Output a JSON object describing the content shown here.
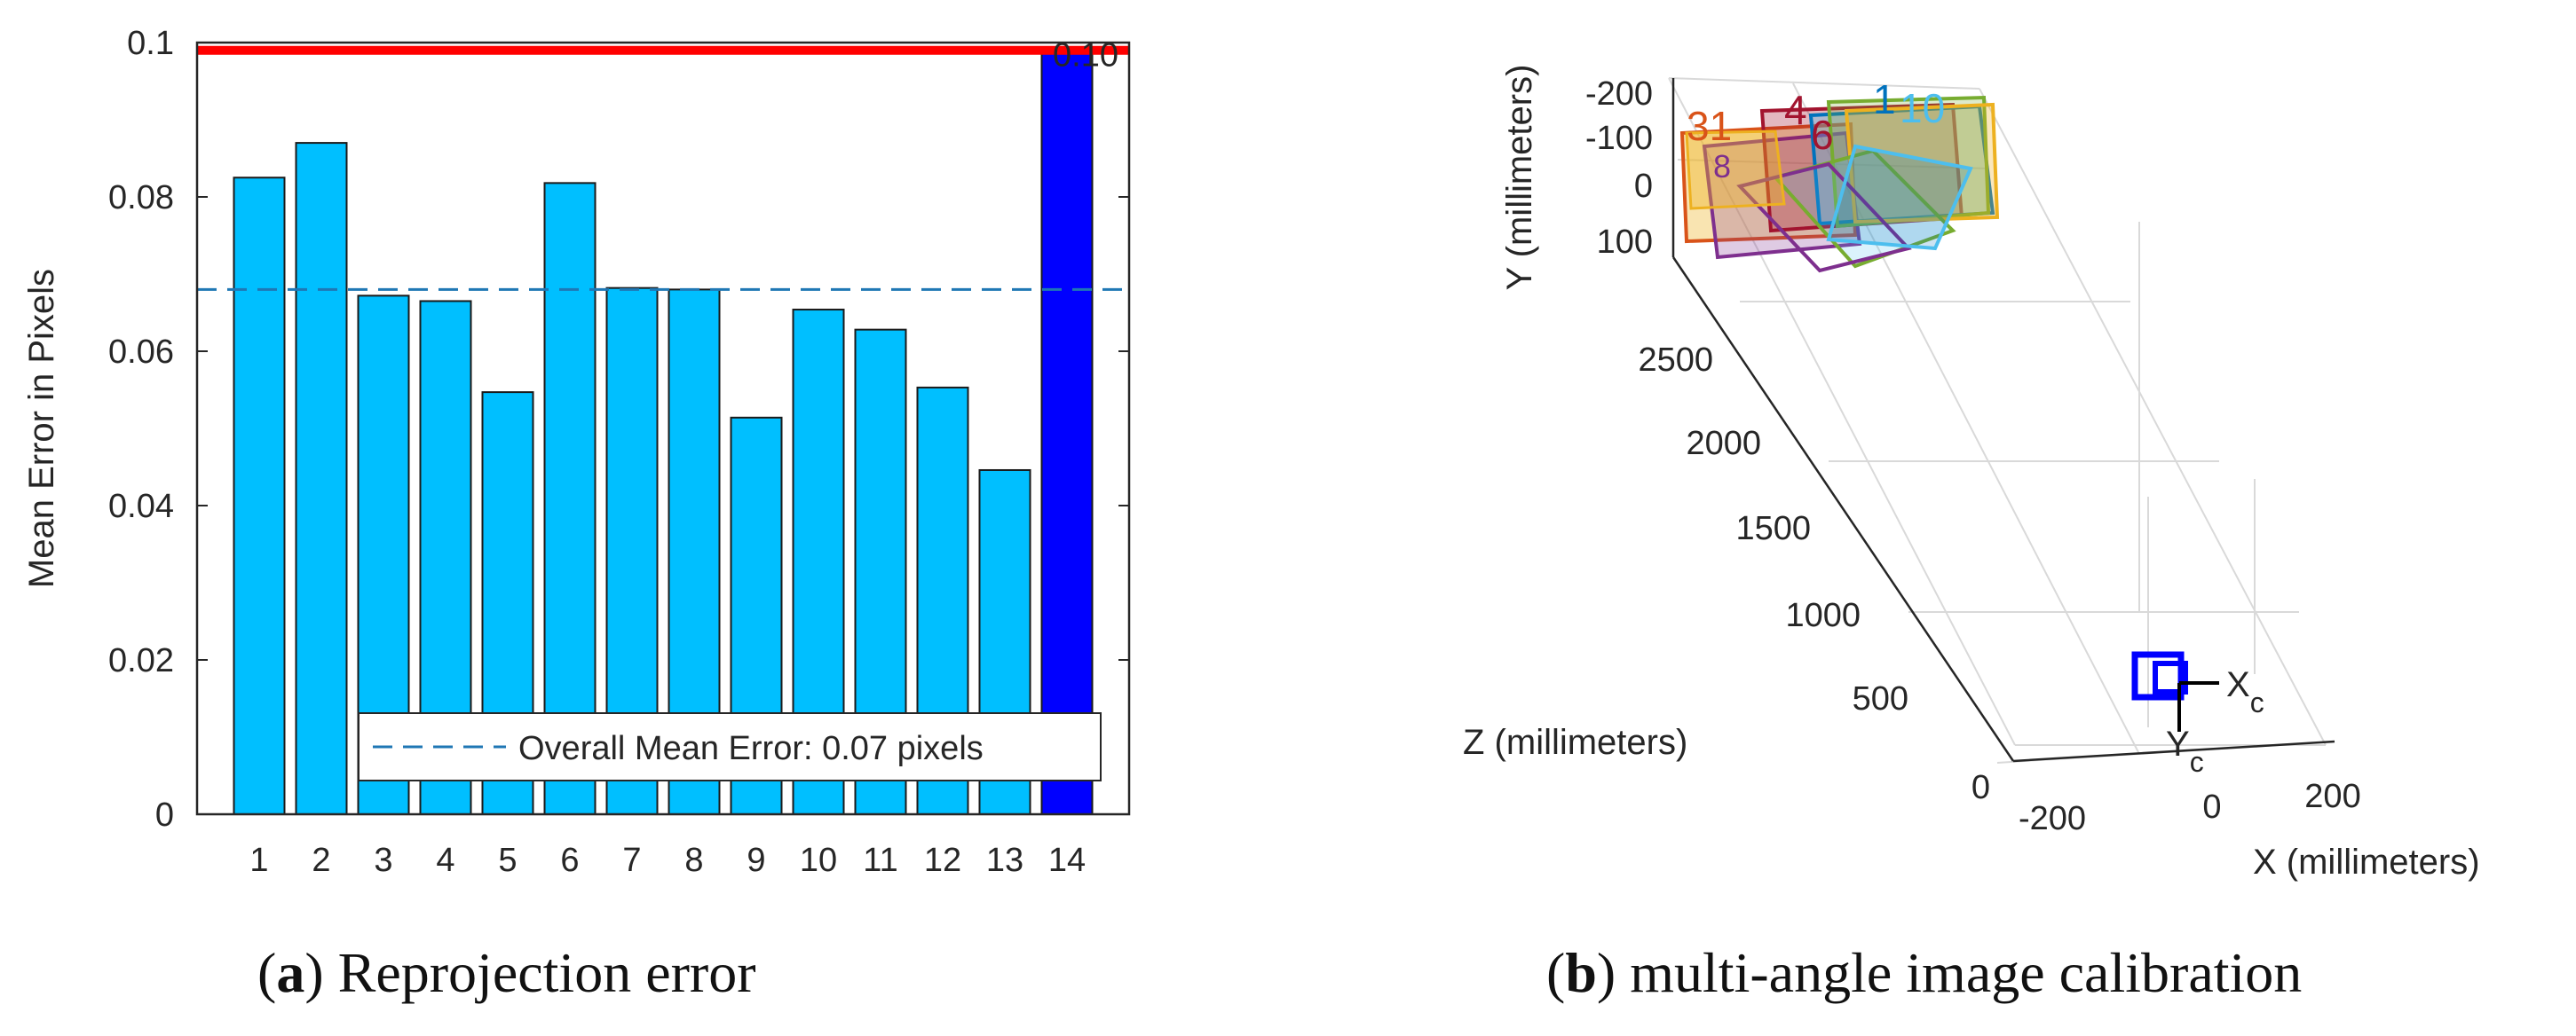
{
  "chart_data": [
    {
      "type": "bar",
      "categories": [
        "1",
        "2",
        "3",
        "4",
        "5",
        "6",
        "7",
        "8",
        "9",
        "10",
        "11",
        "12",
        "13",
        "14"
      ],
      "values": [
        0.0825,
        0.087,
        0.0672,
        0.0665,
        0.0547,
        0.0818,
        0.0682,
        0.068,
        0.0514,
        0.0654,
        0.0628,
        0.0553,
        0.0446,
        0.099
      ],
      "highlight_index": 13,
      "bar_color": "#00bfff",
      "highlight_color": "#0000ff",
      "ylabel": "Mean Error in Pixels",
      "xlabel": "",
      "ylim": [
        0,
        0.1
      ],
      "yticks": [
        0,
        0.02,
        0.04,
        0.06,
        0.08,
        0.1
      ],
      "ytick_labels": [
        "0",
        "0.02",
        "0.04",
        "0.06",
        "0.08",
        "0.1"
      ],
      "mean_value": 0.068,
      "mean_line_color": "#1f77b4",
      "threshold_value": 0.099,
      "threshold_color": "#ff0000",
      "threshold_label": "0.10",
      "legend": {
        "entry": "Overall Mean Error: 0.07 pixels",
        "placement": "bottom-right"
      },
      "caption": {
        "letter": "a",
        "text": "Reprojection error"
      }
    },
    {
      "type": "scatter",
      "subtype": "3d-extrinsics",
      "zlabel": "Y (millimeters)",
      "ylabel": "Z (millimeters)",
      "xlabel": "X (millimeters)",
      "y_ticks": [
        "-200",
        "-100",
        "0",
        "100"
      ],
      "z_ticks": [
        "2500",
        "2000",
        "1500",
        "1000",
        "500",
        "0"
      ],
      "x_ticks": [
        "-200",
        "0",
        "200"
      ],
      "board_labels": [
        "31",
        "4",
        "6",
        "1",
        "10",
        "8"
      ],
      "board_colors": [
        "#0072bd",
        "#d95319",
        "#edb120",
        "#7e2f8e",
        "#77ac30",
        "#4dbeee",
        "#a2142f"
      ],
      "camera": {
        "x_label": "X",
        "x_sub": "c",
        "y_label": "Y",
        "y_sub": "c",
        "color": "#0000ff"
      },
      "caption": {
        "letter": "b",
        "text": "multi-angle image calibration"
      }
    }
  ]
}
